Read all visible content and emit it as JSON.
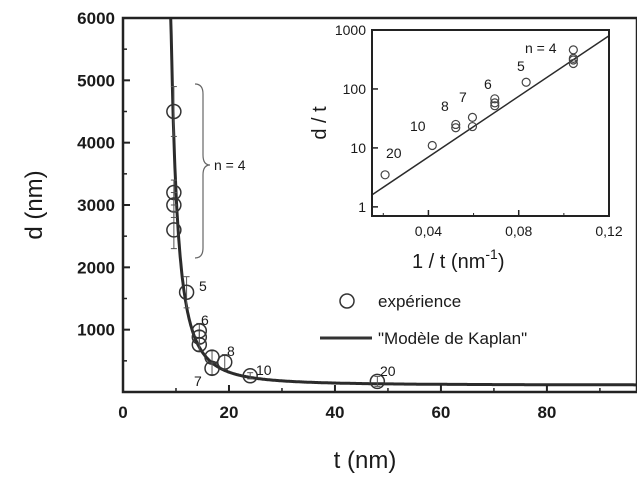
{
  "chart_data": [
    {
      "type": "scatter",
      "xlabel": "t (nm)",
      "ylabel": "d (nm)",
      "xlim": [
        0,
        97
      ],
      "ylim": [
        0,
        6000
      ],
      "x_ticks": [
        "0",
        "20",
        "40",
        "60",
        "80"
      ],
      "y_ticks": [
        "1000",
        "2000",
        "3000",
        "4000",
        "5000",
        "6000"
      ],
      "grid": false,
      "legend_placement": "center-right",
      "legend": [
        "expérience",
        "\"Modèle de Kaplan\""
      ],
      "series": [
        {
          "name": "expérience",
          "points": [
            {
              "x": 9.6,
              "y": 4500,
              "err": 400
            },
            {
              "x": 9.6,
              "y": 3200,
              "err": 200
            },
            {
              "x": 9.6,
              "y": 3000,
              "err": 200
            },
            {
              "x": 9.6,
              "y": 2600,
              "err": 300
            },
            {
              "x": 12.0,
              "y": 1600,
              "err": 250
            },
            {
              "x": 14.4,
              "y": 980,
              "err": 120
            },
            {
              "x": 14.4,
              "y": 880,
              "err": 100
            },
            {
              "x": 14.4,
              "y": 760,
              "err": 100
            },
            {
              "x": 16.8,
              "y": 560,
              "err": 100
            },
            {
              "x": 16.8,
              "y": 380,
              "err": 100
            },
            {
              "x": 19.2,
              "y": 480,
              "err": 120
            },
            {
              "x": 24.0,
              "y": 260,
              "err": 50
            },
            {
              "x": 48.0,
              "y": 170,
              "err": 80
            }
          ]
        },
        {
          "name": "\"Modèle de Kaplan\"",
          "model": "d = A / (t - t0)^2 + B",
          "params": {
            "A": 38000,
            "t0": 6.5,
            "B": 110
          }
        }
      ],
      "annotations": [
        {
          "text": "n = 4",
          "x": 9.6
        },
        {
          "text": "5",
          "x": 12.0
        },
        {
          "text": "6",
          "x": 14.4
        },
        {
          "text": "7",
          "x": 16.8
        },
        {
          "text": "8",
          "x": 19.2
        },
        {
          "text": "10",
          "x": 24.0
        },
        {
          "text": "20",
          "x": 48.0
        }
      ]
    },
    {
      "type": "scatter",
      "inset": true,
      "xlabel": "1 / t (nm",
      "xlabel_superscript": "-1",
      "xlabel_suffix": ")",
      "ylabel": "d / t",
      "yscale": "log",
      "xlim": [
        0.015,
        0.12
      ],
      "ylim": [
        0.7,
        1000
      ],
      "x_ticks": [
        "0,04",
        "0,08",
        "0,12"
      ],
      "y_ticks": [
        "1",
        "10",
        "100",
        "1000"
      ],
      "grid": false,
      "series": [
        {
          "name": "data",
          "points": [
            {
              "x": 0.0208,
              "y": 3.5
            },
            {
              "x": 0.0417,
              "y": 11
            },
            {
              "x": 0.0521,
              "y": 25
            },
            {
              "x": 0.0521,
              "y": 22
            },
            {
              "x": 0.0595,
              "y": 33
            },
            {
              "x": 0.0595,
              "y": 23
            },
            {
              "x": 0.0694,
              "y": 68
            },
            {
              "x": 0.0694,
              "y": 58
            },
            {
              "x": 0.0694,
              "y": 52
            },
            {
              "x": 0.0833,
              "y": 130
            },
            {
              "x": 0.1042,
              "y": 460
            },
            {
              "x": 0.1042,
              "y": 330
            },
            {
              "x": 0.1042,
              "y": 310
            },
            {
              "x": 0.1042,
              "y": 270
            }
          ]
        },
        {
          "name": "fit",
          "line": [
            {
              "x": 0.015,
              "y": 1.6
            },
            {
              "x": 0.12,
              "y": 800
            }
          ]
        }
      ],
      "annotations": [
        {
          "text": "20",
          "x": 0.0208
        },
        {
          "text": "10",
          "x": 0.0417
        },
        {
          "text": "8",
          "x": 0.0521
        },
        {
          "text": "7",
          "x": 0.0595
        },
        {
          "text": "6",
          "x": 0.0694
        },
        {
          "text": "5",
          "x": 0.0833
        },
        {
          "text": "n = 4",
          "x": 0.1042
        }
      ]
    }
  ]
}
